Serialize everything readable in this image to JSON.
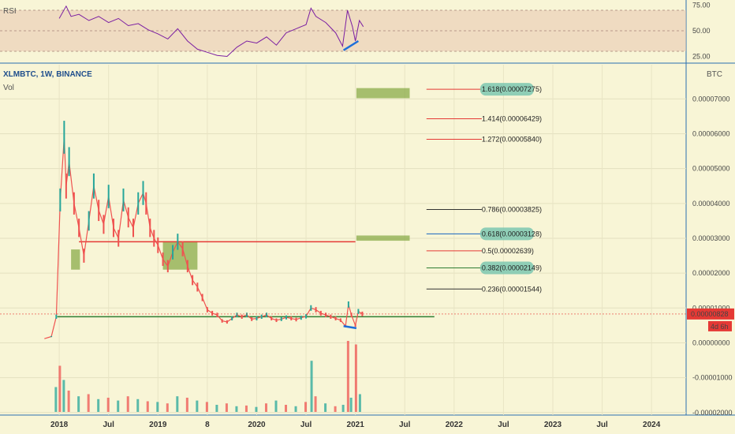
{
  "header": {
    "title": "XLMBTC, 1W, BINANCE",
    "volume_label": "Vol",
    "rsi_label": "RSI",
    "unit_label": "BTC"
  },
  "chart_data": {
    "type": "line",
    "symbol": "XLMBTC",
    "interval": "1W",
    "exchange": "BINANCE",
    "price_axis": {
      "ticks": [
        "0.00007000",
        "0.00006000",
        "0.00005000",
        "0.00004000",
        "0.00003000",
        "0.00002000",
        "0.00001000",
        "0.00000000",
        "-0.00001000",
        "-0.00002000"
      ],
      "range": [
        -2.05e-05,
        7.8e-05
      ]
    },
    "rsi_axis": {
      "ticks": [
        "75.00",
        "50.00",
        "25.00"
      ],
      "range": [
        20,
        80
      ]
    },
    "time_axis": {
      "labels": [
        "2018",
        "Jul",
        "2019",
        "8",
        "2020",
        "Jul",
        "2021",
        "Jul",
        "2022",
        "Jul",
        "2023",
        "Jul",
        "2024"
      ],
      "range_years": [
        2017.4,
        2024.35
      ]
    },
    "last_price": "0.00000828",
    "countdown": "4d 6h",
    "price_series": [
      {
        "t": 2017.85,
        "v": 1.2e-06
      },
      {
        "t": 2017.92,
        "v": 1.8e-06
      },
      {
        "t": 2017.97,
        "v": 7.5e-06
      },
      {
        "t": 2018.01,
        "v": 4.1e-05
      },
      {
        "t": 2018.05,
        "v": 5.9e-05
      },
      {
        "t": 2018.07,
        "v": 4.5e-05
      },
      {
        "t": 2018.1,
        "v": 5.2e-05
      },
      {
        "t": 2018.15,
        "v": 4e-05
      },
      {
        "t": 2018.2,
        "v": 3.3e-05
      },
      {
        "t": 2018.25,
        "v": 2.5e-05
      },
      {
        "t": 2018.3,
        "v": 3.5e-05
      },
      {
        "t": 2018.35,
        "v": 4.5e-05
      },
      {
        "t": 2018.4,
        "v": 3.8e-05
      },
      {
        "t": 2018.45,
        "v": 3.4e-05
      },
      {
        "t": 2018.5,
        "v": 4.2e-05
      },
      {
        "t": 2018.55,
        "v": 3.3e-05
      },
      {
        "t": 2018.6,
        "v": 3e-05
      },
      {
        "t": 2018.65,
        "v": 4.1e-05
      },
      {
        "t": 2018.7,
        "v": 3.6e-05
      },
      {
        "t": 2018.75,
        "v": 3.3e-05
      },
      {
        "t": 2018.8,
        "v": 4e-05
      },
      {
        "t": 2018.85,
        "v": 4.3e-05
      },
      {
        "t": 2018.88,
        "v": 4e-05
      },
      {
        "t": 2018.92,
        "v": 3.3e-05
      },
      {
        "t": 2018.96,
        "v": 3e-05
      },
      {
        "t": 2019.0,
        "v": 2.8e-05
      },
      {
        "t": 2019.05,
        "v": 2.4e-05
      },
      {
        "t": 2019.1,
        "v": 2.2e-05
      },
      {
        "t": 2019.15,
        "v": 2.6e-05
      },
      {
        "t": 2019.2,
        "v": 2.9e-05
      },
      {
        "t": 2019.25,
        "v": 2.7e-05
      },
      {
        "t": 2019.3,
        "v": 2.2e-05
      },
      {
        "t": 2019.35,
        "v": 1.8e-05
      },
      {
        "t": 2019.4,
        "v": 1.6e-05
      },
      {
        "t": 2019.45,
        "v": 1.3e-05
      },
      {
        "t": 2019.5,
        "v": 9.5e-06
      },
      {
        "t": 2019.55,
        "v": 8.5e-06
      },
      {
        "t": 2019.6,
        "v": 8e-06
      },
      {
        "t": 2019.65,
        "v": 6.3e-06
      },
      {
        "t": 2019.7,
        "v": 6e-06
      },
      {
        "t": 2019.75,
        "v": 7e-06
      },
      {
        "t": 2019.8,
        "v": 8e-06
      },
      {
        "t": 2019.85,
        "v": 7.5e-06
      },
      {
        "t": 2019.9,
        "v": 8e-06
      },
      {
        "t": 2019.95,
        "v": 6.8e-06
      },
      {
        "t": 2020.0,
        "v": 7e-06
      },
      {
        "t": 2020.05,
        "v": 7.5e-06
      },
      {
        "t": 2020.1,
        "v": 8e-06
      },
      {
        "t": 2020.15,
        "v": 7e-06
      },
      {
        "t": 2020.2,
        "v": 6.5e-06
      },
      {
        "t": 2020.25,
        "v": 6.8e-06
      },
      {
        "t": 2020.3,
        "v": 7.3e-06
      },
      {
        "t": 2020.35,
        "v": 7e-06
      },
      {
        "t": 2020.4,
        "v": 6.7e-06
      },
      {
        "t": 2020.45,
        "v": 7.2e-06
      },
      {
        "t": 2020.5,
        "v": 7.6e-06
      },
      {
        "t": 2020.55,
        "v": 1e-05
      },
      {
        "t": 2020.6,
        "v": 9.5e-06
      },
      {
        "t": 2020.65,
        "v": 8.5e-06
      },
      {
        "t": 2020.7,
        "v": 8e-06
      },
      {
        "t": 2020.75,
        "v": 7.5e-06
      },
      {
        "t": 2020.8,
        "v": 7e-06
      },
      {
        "t": 2020.85,
        "v": 6.5e-06
      },
      {
        "t": 2020.9,
        "v": 4.8e-06
      },
      {
        "t": 2020.93,
        "v": 1.1e-05
      },
      {
        "t": 2020.96,
        "v": 8e-06
      },
      {
        "t": 2021.0,
        "v": 5e-06
      },
      {
        "t": 2021.03,
        "v": 9e-06
      },
      {
        "t": 2021.07,
        "v": 8.3e-06
      }
    ],
    "rsi_series": [
      {
        "t": 2018.0,
        "v": 62
      },
      {
        "t": 2018.07,
        "v": 74
      },
      {
        "t": 2018.12,
        "v": 64
      },
      {
        "t": 2018.2,
        "v": 66
      },
      {
        "t": 2018.3,
        "v": 60
      },
      {
        "t": 2018.4,
        "v": 64
      },
      {
        "t": 2018.5,
        "v": 58
      },
      {
        "t": 2018.6,
        "v": 62
      },
      {
        "t": 2018.7,
        "v": 55
      },
      {
        "t": 2018.8,
        "v": 57
      },
      {
        "t": 2018.9,
        "v": 51
      },
      {
        "t": 2019.0,
        "v": 47
      },
      {
        "t": 2019.1,
        "v": 42
      },
      {
        "t": 2019.2,
        "v": 52
      },
      {
        "t": 2019.3,
        "v": 40
      },
      {
        "t": 2019.4,
        "v": 32
      },
      {
        "t": 2019.5,
        "v": 29
      },
      {
        "t": 2019.6,
        "v": 26
      },
      {
        "t": 2019.7,
        "v": 25
      },
      {
        "t": 2019.8,
        "v": 34
      },
      {
        "t": 2019.9,
        "v": 40
      },
      {
        "t": 2020.0,
        "v": 38
      },
      {
        "t": 2020.1,
        "v": 44
      },
      {
        "t": 2020.2,
        "v": 36
      },
      {
        "t": 2020.3,
        "v": 48
      },
      {
        "t": 2020.4,
        "v": 52
      },
      {
        "t": 2020.5,
        "v": 56
      },
      {
        "t": 2020.55,
        "v": 72
      },
      {
        "t": 2020.6,
        "v": 64
      },
      {
        "t": 2020.7,
        "v": 58
      },
      {
        "t": 2020.8,
        "v": 48
      },
      {
        "t": 2020.87,
        "v": 35
      },
      {
        "t": 2020.92,
        "v": 70
      },
      {
        "t": 2020.97,
        "v": 54
      },
      {
        "t": 2021.0,
        "v": 40
      },
      {
        "t": 2021.04,
        "v": 60
      },
      {
        "t": 2021.08,
        "v": 54
      }
    ],
    "volume_relative": [
      {
        "t": 2017.97,
        "v": 0.35
      },
      {
        "t": 2018.01,
        "v": 0.65
      },
      {
        "t": 2018.05,
        "v": 0.45
      },
      {
        "t": 2018.1,
        "v": 0.3
      },
      {
        "t": 2018.2,
        "v": 0.22
      },
      {
        "t": 2018.3,
        "v": 0.25
      },
      {
        "t": 2018.4,
        "v": 0.18
      },
      {
        "t": 2018.5,
        "v": 0.2
      },
      {
        "t": 2018.6,
        "v": 0.16
      },
      {
        "t": 2018.7,
        "v": 0.22
      },
      {
        "t": 2018.8,
        "v": 0.18
      },
      {
        "t": 2018.9,
        "v": 0.15
      },
      {
        "t": 2019.0,
        "v": 0.14
      },
      {
        "t": 2019.1,
        "v": 0.12
      },
      {
        "t": 2019.2,
        "v": 0.22
      },
      {
        "t": 2019.3,
        "v": 0.2
      },
      {
        "t": 2019.4,
        "v": 0.16
      },
      {
        "t": 2019.5,
        "v": 0.14
      },
      {
        "t": 2019.6,
        "v": 0.1
      },
      {
        "t": 2019.7,
        "v": 0.12
      },
      {
        "t": 2019.8,
        "v": 0.08
      },
      {
        "t": 2019.9,
        "v": 0.09
      },
      {
        "t": 2020.0,
        "v": 0.07
      },
      {
        "t": 2020.1,
        "v": 0.12
      },
      {
        "t": 2020.2,
        "v": 0.16
      },
      {
        "t": 2020.3,
        "v": 0.1
      },
      {
        "t": 2020.4,
        "v": 0.08
      },
      {
        "t": 2020.5,
        "v": 0.14
      },
      {
        "t": 2020.56,
        "v": 0.72
      },
      {
        "t": 2020.6,
        "v": 0.22
      },
      {
        "t": 2020.7,
        "v": 0.12
      },
      {
        "t": 2020.8,
        "v": 0.08
      },
      {
        "t": 2020.88,
        "v": 0.1
      },
      {
        "t": 2020.93,
        "v": 1.0
      },
      {
        "t": 2020.96,
        "v": 0.2
      },
      {
        "t": 2021.01,
        "v": 0.95
      },
      {
        "t": 2021.05,
        "v": 0.25
      }
    ],
    "fib_levels": [
      {
        "label": "1.618(0.00007275)",
        "value": 7.275e-05,
        "color": "#e53935",
        "highlighted": true
      },
      {
        "label": "1.414(0.00006429)",
        "value": 6.429e-05,
        "color": "#e53935",
        "highlighted": false
      },
      {
        "label": "1.272(0.00005840)",
        "value": 5.84e-05,
        "color": "#e53935",
        "highlighted": false
      },
      {
        "label": "0.786(0.00003825)",
        "value": 3.825e-05,
        "color": "#333333",
        "highlighted": false
      },
      {
        "label": "0.618(0.00003128)",
        "value": 3.128e-05,
        "color": "#1565c0",
        "highlighted": true
      },
      {
        "label": "0.5(0.00002639)",
        "value": 2.639e-05,
        "color": "#e53935",
        "highlighted": false
      },
      {
        "label": "0.382(0.00002149)",
        "value": 2.149e-05,
        "color": "#2e7d32",
        "highlighted": true
      },
      {
        "label": "0.236(0.00001544)",
        "value": 1.544e-05,
        "color": "#333333",
        "highlighted": false
      }
    ],
    "support_resistance": [
      {
        "value": 2.9e-05,
        "from": 2018.2,
        "to": 2021.0,
        "color": "#e53935"
      },
      {
        "value": 7.5e-06,
        "from": 2017.98,
        "to": 2021.8,
        "color": "#2e7d32"
      }
    ],
    "zones": [
      {
        "t0": 2018.12,
        "t1": 2018.21,
        "v0": 2.1e-05,
        "v1": 2.68e-05
      },
      {
        "t0": 2019.05,
        "t1": 2019.4,
        "v0": 2.1e-05,
        "v1": 2.92e-05
      },
      {
        "t0": 2021.01,
        "t1": 2021.55,
        "v0": 2.93e-05,
        "v1": 3.08e-05
      },
      {
        "t0": 2021.01,
        "t1": 2021.55,
        "v0": 7.02e-05,
        "v1": 7.31e-05
      }
    ],
    "divergence_lines": [
      {
        "pane": "price",
        "t0": 2020.88,
        "v0": 4.8e-06,
        "t1": 2021.01,
        "v1": 4.2e-06
      },
      {
        "pane": "rsi",
        "t0": 2020.88,
        "v0": 31,
        "t1": 2021.03,
        "v1": 40
      }
    ],
    "colors": {
      "up": "#26a69a",
      "down": "#ef5350",
      "rsi_line": "#7b1fa2",
      "rsi_band": "#e8c4b0",
      "zone": "#8bab4a",
      "divergence": "#1e6fd9",
      "last_price": "#e53935",
      "axis_line": "#2a6fb0"
    }
  }
}
